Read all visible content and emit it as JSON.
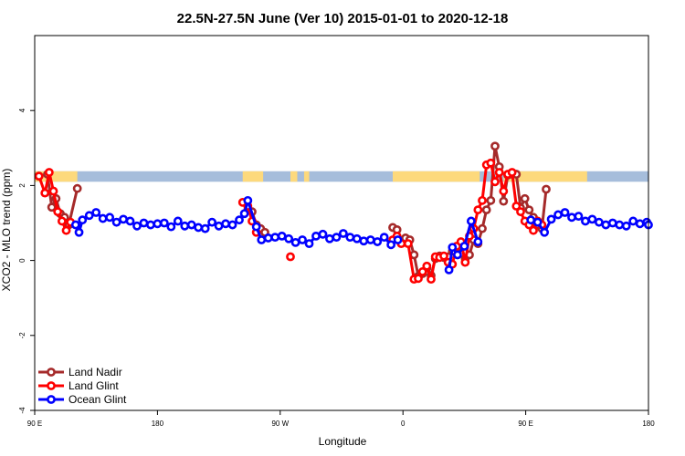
{
  "chart_data": {
    "type": "line",
    "title": "22.5N-27.5N June (Ver 10)   2015-01-01 to 2020-12-18",
    "xlabel": "Longitude",
    "ylabel": "XCO2 - MLO trend (ppm)",
    "xlim": [
      90,
      450
    ],
    "ylim": [
      -4,
      6
    ],
    "x_ticks": [
      {
        "value": 90,
        "label": "90 E"
      },
      {
        "value": 162,
        "label": "180"
      },
      {
        "value": 234,
        "label": "90 W"
      },
      {
        "value": 306,
        "label": "0"
      },
      {
        "value": 378,
        "label": "90 E"
      },
      {
        "value": 450,
        "label": "180"
      }
    ],
    "y_ticks": [
      {
        "value": -4,
        "label": "-4"
      },
      {
        "value": -2,
        "label": "-2"
      },
      {
        "value": 0,
        "label": "0"
      },
      {
        "value": 2,
        "label": "2"
      },
      {
        "value": 4,
        "label": "4"
      }
    ],
    "grid": false,
    "legend_position": "bottom-left",
    "land_mask_band": {
      "y_range": [
        2.1,
        2.38
      ],
      "ocean_color": "#a6bddb",
      "land_color": "#fdd97c",
      "land_x_ranges": [
        [
          90,
          115
        ],
        [
          212,
          224
        ],
        [
          240,
          244
        ],
        [
          248,
          251
        ],
        [
          300,
          351
        ],
        [
          365,
          414
        ]
      ]
    },
    "series": [
      {
        "name": "Land Nadir",
        "color": "#a52a2a",
        "points": [
          [
            92.5,
            2.25
          ],
          [
            97.5,
            2.3
          ],
          [
            100,
            1.42
          ],
          [
            102.5,
            1.65
          ],
          [
            105,
            1.25
          ],
          [
            107.5,
            1.15
          ],
          [
            110,
            0.95
          ],
          [
            115,
            1.92
          ],
          [
            215,
            1.35
          ],
          [
            217.5,
            1.3
          ],
          [
            220,
            0.95
          ],
          [
            222.5,
            0.85
          ],
          [
            225,
            0.75
          ],
          [
            300,
            0.88
          ],
          [
            302.5,
            0.82
          ],
          [
            305,
            0.52
          ],
          [
            307.5,
            0.6
          ],
          [
            310,
            0.55
          ],
          [
            312.5,
            0.15
          ],
          [
            315,
            -0.42
          ],
          [
            317.5,
            -0.35
          ],
          [
            320,
            -0.2
          ],
          [
            322.5,
            -0.4
          ],
          [
            325,
            0.05
          ],
          [
            327.5,
            0.12
          ],
          [
            330,
            0.08
          ],
          [
            332.5,
            0.1
          ],
          [
            335,
            0.25
          ],
          [
            337.5,
            0.35
          ],
          [
            340,
            0.4
          ],
          [
            342.5,
            0.05
          ],
          [
            345,
            0.15
          ],
          [
            347.5,
            0.55
          ],
          [
            350,
            0.45
          ],
          [
            352.5,
            0.85
          ],
          [
            355,
            1.35
          ],
          [
            357.5,
            1.6
          ],
          [
            360,
            3.05
          ],
          [
            362.5,
            2.5
          ],
          [
            365,
            1.58
          ],
          [
            367.5,
            2.28
          ],
          [
            370,
            2.3
          ],
          [
            372.5,
            2.3
          ],
          [
            375,
            1.4
          ],
          [
            377.5,
            1.65
          ],
          [
            380,
            1.35
          ],
          [
            382.5,
            1.15
          ],
          [
            385,
            0.95
          ],
          [
            387.5,
            0.85
          ],
          [
            390,
            1.9
          ]
        ]
      },
      {
        "name": "Land Glint",
        "color": "#ff0000",
        "points": [
          [
            92.5,
            2.25
          ],
          [
            96,
            1.8
          ],
          [
            98.5,
            2.35
          ],
          [
            101,
            1.85
          ],
          [
            103.5,
            1.3
          ],
          [
            106,
            1.05
          ],
          [
            108.5,
            0.8
          ],
          [
            111,
            1.02
          ],
          [
            212,
            1.55
          ],
          [
            215,
            1.45
          ],
          [
            217.5,
            1.05
          ],
          [
            220,
            0.75
          ],
          [
            240,
            0.1
          ],
          [
            300,
            0.55
          ],
          [
            302.5,
            0.65
          ],
          [
            305,
            0.45
          ],
          [
            309,
            0.45
          ],
          [
            312.5,
            -0.5
          ],
          [
            315,
            -0.48
          ],
          [
            317.5,
            -0.3
          ],
          [
            320,
            -0.15
          ],
          [
            322.5,
            -0.5
          ],
          [
            325,
            0.1
          ],
          [
            327.5,
            0.08
          ],
          [
            330,
            0.12
          ],
          [
            332.5,
            -0.05
          ],
          [
            335,
            -0.1
          ],
          [
            337.5,
            0.38
          ],
          [
            340,
            0.5
          ],
          [
            342.5,
            -0.05
          ],
          [
            345,
            0.65
          ],
          [
            347.5,
            0.85
          ],
          [
            350,
            1.35
          ],
          [
            352.5,
            1.6
          ],
          [
            355,
            2.55
          ],
          [
            357.5,
            2.6
          ],
          [
            360,
            2.1
          ],
          [
            362.5,
            2.35
          ],
          [
            365,
            1.85
          ],
          [
            367.5,
            2.3
          ],
          [
            370,
            2.35
          ],
          [
            372.5,
            1.45
          ],
          [
            375,
            1.3
          ],
          [
            377.5,
            1.05
          ],
          [
            380,
            0.95
          ],
          [
            382.5,
            0.8
          ],
          [
            385,
            1.05
          ],
          [
            387.5,
            0.95
          ]
        ]
      },
      {
        "name": "Ocean Glint",
        "color": "#0000ff",
        "points": [
          [
            114,
            0.95
          ],
          [
            116,
            0.75
          ],
          [
            118,
            1.08
          ],
          [
            122,
            1.2
          ],
          [
            126,
            1.28
          ],
          [
            130,
            1.12
          ],
          [
            134,
            1.15
          ],
          [
            138,
            1.02
          ],
          [
            142,
            1.1
          ],
          [
            146,
            1.05
          ],
          [
            150,
            0.92
          ],
          [
            154,
            1.0
          ],
          [
            158,
            0.95
          ],
          [
            162,
            0.98
          ],
          [
            166,
            1.0
          ],
          [
            170,
            0.9
          ],
          [
            174,
            1.05
          ],
          [
            178,
            0.92
          ],
          [
            182,
            0.95
          ],
          [
            186,
            0.88
          ],
          [
            190,
            0.85
          ],
          [
            194,
            1.02
          ],
          [
            198,
            0.92
          ],
          [
            202,
            0.98
          ],
          [
            206,
            0.95
          ],
          [
            210,
            1.08
          ],
          [
            213,
            1.25
          ],
          [
            215,
            1.6
          ],
          [
            220,
            0.9
          ],
          [
            223,
            0.55
          ],
          [
            227,
            0.6
          ],
          [
            231,
            0.62
          ],
          [
            235,
            0.65
          ],
          [
            239,
            0.58
          ],
          [
            243,
            0.48
          ],
          [
            247,
            0.55
          ],
          [
            251,
            0.45
          ],
          [
            255,
            0.65
          ],
          [
            259,
            0.7
          ],
          [
            263,
            0.58
          ],
          [
            267,
            0.62
          ],
          [
            271,
            0.72
          ],
          [
            275,
            0.62
          ],
          [
            279,
            0.58
          ],
          [
            283,
            0.52
          ],
          [
            287,
            0.55
          ],
          [
            291,
            0.5
          ],
          [
            295,
            0.62
          ],
          [
            299,
            0.42
          ],
          [
            303,
            0.55
          ],
          [
            333,
            -0.25
          ],
          [
            335,
            0.35
          ],
          [
            338,
            0.15
          ],
          [
            342,
            0.38
          ],
          [
            346,
            1.05
          ],
          [
            350,
            0.5
          ],
          [
            381,
            1.08
          ],
          [
            385,
            1.02
          ],
          [
            389,
            0.75
          ],
          [
            393,
            1.1
          ],
          [
            397,
            1.22
          ],
          [
            401,
            1.28
          ],
          [
            405,
            1.15
          ],
          [
            409,
            1.18
          ],
          [
            413,
            1.05
          ],
          [
            417,
            1.1
          ],
          [
            421,
            1.02
          ],
          [
            425,
            0.95
          ],
          [
            429,
            1.0
          ],
          [
            433,
            0.95
          ],
          [
            437,
            0.92
          ],
          [
            441,
            1.05
          ],
          [
            445,
            0.98
          ],
          [
            449,
            1.02
          ],
          [
            450,
            0.95
          ]
        ]
      }
    ]
  }
}
